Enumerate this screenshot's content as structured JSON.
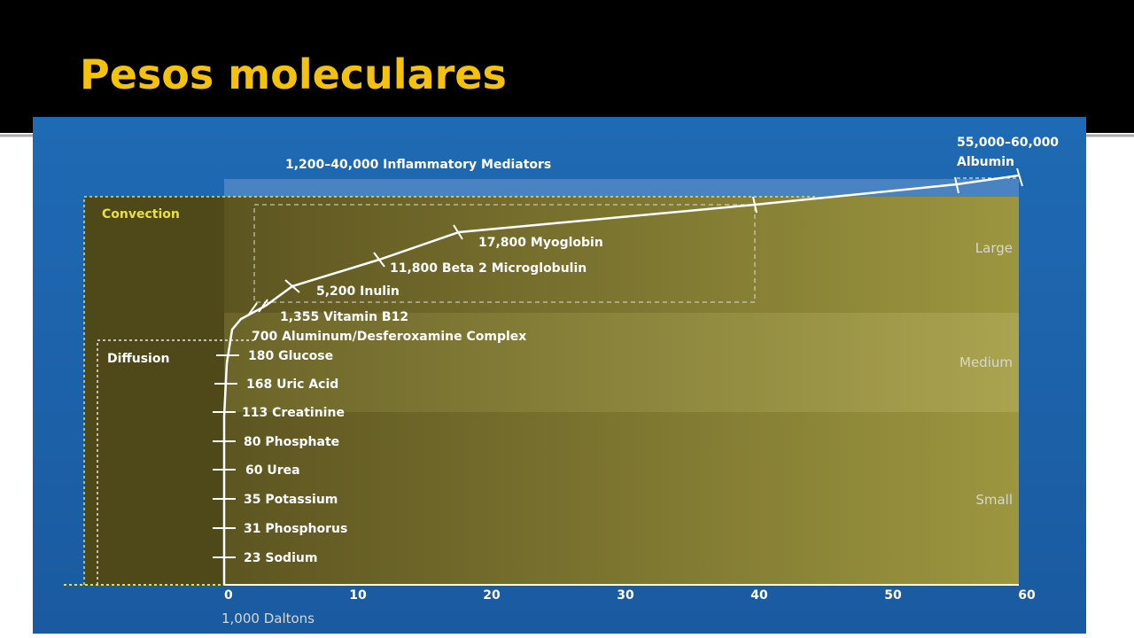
{
  "title": "Pesos moleculares",
  "chart": {
    "header": "1,200–40,000 Inflammatory Mediators",
    "albumin": [
      "55,000–60,000",
      "Albumin"
    ],
    "zones": [
      "Convection",
      "Diffusion"
    ],
    "sizes": [
      "Large",
      "Medium",
      "Small"
    ],
    "markers": [
      "17,800 Myoglobin",
      "11,800 Beta 2 Microglobulin",
      "5,200 Inulin",
      "1,355 Vitamin B12",
      "700 Aluminum/Desferoxamine Complex",
      "180 Glucose",
      "168 Uric Acid",
      "113 Creatinine",
      "80 Phosphate",
      "60 Urea",
      "35 Potassium",
      "31 Phosphorus",
      "23 Sodium"
    ],
    "axis": {
      "ticks": [
        0,
        10,
        20,
        30,
        40,
        50,
        60
      ],
      "label": "1,000 Daltons"
    }
  }
}
